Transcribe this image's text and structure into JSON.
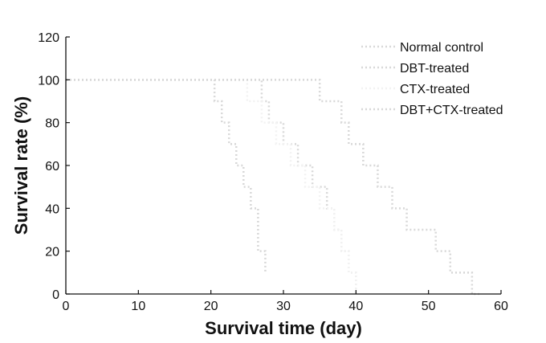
{
  "chart_data": {
    "type": "line",
    "step": true,
    "xlabel": "Survival time (day)",
    "ylabel": "Survival rate (%)",
    "xlim": [
      0,
      60
    ],
    "ylim": [
      0,
      120
    ],
    "xticks": [
      0,
      10,
      20,
      30,
      40,
      50,
      60
    ],
    "yticks": [
      0,
      20,
      40,
      60,
      80,
      100,
      120
    ],
    "legend_position": "top-right",
    "series": [
      {
        "name": "Normal control",
        "line_color": "#d8d8d8",
        "x": [
          0,
          20,
          20.5,
          21.5,
          22.5,
          23.5,
          24.5,
          25.5,
          26.5,
          27.5
        ],
        "y": [
          100,
          100,
          90,
          80,
          70,
          60,
          50,
          40,
          20,
          10
        ]
      },
      {
        "name": "DBT-treated",
        "line_color": "#d8d8d8",
        "x": [
          0,
          26,
          27,
          28,
          29,
          30,
          31,
          32,
          33,
          34,
          35,
          36,
          37,
          38,
          39,
          40
        ],
        "y": [
          100,
          100,
          90,
          80,
          80,
          70,
          70,
          60,
          60,
          50,
          50,
          40,
          30,
          20,
          10,
          0
        ]
      },
      {
        "name": "CTX-treated",
        "line_color": "#f2f2f2",
        "x": [
          0,
          24,
          25,
          26,
          27,
          28,
          29,
          30,
          31,
          32,
          33,
          34,
          35,
          36,
          37,
          38,
          39,
          40
        ],
        "y": [
          100,
          100,
          90,
          90,
          80,
          80,
          70,
          70,
          60,
          60,
          50,
          50,
          40,
          40,
          30,
          20,
          10,
          0
        ]
      },
      {
        "name": "DBT+CTX-treated",
        "line_color": "#d8d8d8",
        "x": [
          0,
          34,
          35,
          37,
          38,
          39,
          40,
          41,
          42,
          43,
          45,
          47,
          49,
          51,
          53,
          55,
          56,
          57
        ],
        "y": [
          100,
          100,
          90,
          90,
          80,
          70,
          70,
          60,
          60,
          50,
          40,
          30,
          30,
          20,
          10,
          10,
          0,
          0
        ]
      }
    ]
  }
}
